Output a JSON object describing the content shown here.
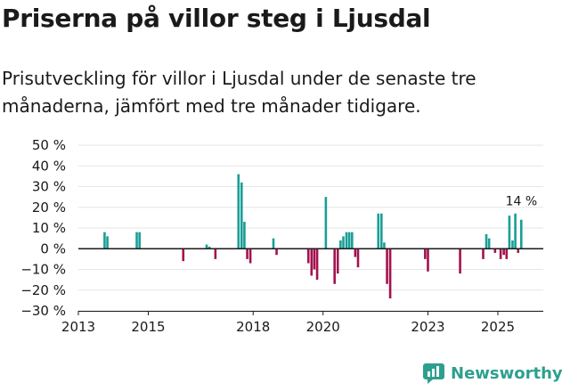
{
  "header": {
    "title": "Priserna på villor steg i Ljusdal",
    "subtitle": "Prisutveckling för villor i Ljusdal under de senaste tre månaderna, jämfört med tre månader tidigare."
  },
  "brand": {
    "name": "Newsworthy"
  },
  "colors": {
    "positive": "#1a9e96",
    "negative": "#a3124f",
    "grid": "#e6e6e6",
    "axis": "#1a1a1a",
    "brand": "#2e9f8f"
  },
  "chart_data": {
    "type": "bar",
    "title": "Priserna på villor steg i Ljusdal",
    "xlabel": "",
    "ylabel": "",
    "ylim": [
      -30,
      50
    ],
    "xlim": [
      2013.0,
      2026.3
    ],
    "y_ticks": [
      50,
      40,
      30,
      20,
      10,
      0,
      -10,
      -20,
      -30
    ],
    "y_tick_labels": [
      "50 %",
      "40 %",
      "30 %",
      "20 %",
      "10 %",
      "0 %",
      "−10 %",
      "−20 %",
      "−30 %"
    ],
    "x_ticks": [
      2013,
      2015,
      2018,
      2020,
      2023,
      2025
    ],
    "x_tick_labels": [
      "2013",
      "2015",
      "2018",
      "2020",
      "2023",
      "2025"
    ],
    "annotation": {
      "text": "14 %",
      "x": 2025.75,
      "y": 14
    },
    "series": [
      {
        "name": "Prisutveckling",
        "values": [
          {
            "x": 2013.75,
            "y": 8
          },
          {
            "x": 2013.83,
            "y": 6
          },
          {
            "x": 2014.67,
            "y": 8
          },
          {
            "x": 2014.75,
            "y": 8
          },
          {
            "x": 2016.0,
            "y": -6
          },
          {
            "x": 2016.67,
            "y": 2
          },
          {
            "x": 2016.75,
            "y": 1
          },
          {
            "x": 2016.92,
            "y": -5
          },
          {
            "x": 2017.58,
            "y": 36
          },
          {
            "x": 2017.67,
            "y": 32
          },
          {
            "x": 2017.75,
            "y": 13
          },
          {
            "x": 2017.83,
            "y": -5
          },
          {
            "x": 2017.92,
            "y": -7
          },
          {
            "x": 2018.58,
            "y": 5
          },
          {
            "x": 2018.67,
            "y": -3
          },
          {
            "x": 2019.58,
            "y": -7
          },
          {
            "x": 2019.67,
            "y": -13
          },
          {
            "x": 2019.75,
            "y": -10
          },
          {
            "x": 2019.83,
            "y": -15
          },
          {
            "x": 2020.08,
            "y": 25
          },
          {
            "x": 2020.33,
            "y": -17
          },
          {
            "x": 2020.42,
            "y": -12
          },
          {
            "x": 2020.5,
            "y": 4
          },
          {
            "x": 2020.58,
            "y": 6
          },
          {
            "x": 2020.67,
            "y": 8
          },
          {
            "x": 2020.75,
            "y": 8
          },
          {
            "x": 2020.83,
            "y": 8
          },
          {
            "x": 2020.92,
            "y": -4
          },
          {
            "x": 2021.0,
            "y": -9
          },
          {
            "x": 2021.58,
            "y": 17
          },
          {
            "x": 2021.67,
            "y": 17
          },
          {
            "x": 2021.75,
            "y": 3
          },
          {
            "x": 2021.83,
            "y": -17
          },
          {
            "x": 2021.92,
            "y": -24
          },
          {
            "x": 2022.92,
            "y": -5
          },
          {
            "x": 2023.0,
            "y": -11
          },
          {
            "x": 2023.92,
            "y": -12
          },
          {
            "x": 2024.58,
            "y": -5
          },
          {
            "x": 2024.67,
            "y": 7
          },
          {
            "x": 2024.75,
            "y": 5
          },
          {
            "x": 2024.92,
            "y": -2
          },
          {
            "x": 2025.08,
            "y": -5
          },
          {
            "x": 2025.17,
            "y": -3
          },
          {
            "x": 2025.25,
            "y": -5
          },
          {
            "x": 2025.33,
            "y": 16
          },
          {
            "x": 2025.42,
            "y": 4
          },
          {
            "x": 2025.5,
            "y": 17
          },
          {
            "x": 2025.58,
            "y": -2
          },
          {
            "x": 2025.67,
            "y": 14
          }
        ]
      }
    ]
  }
}
